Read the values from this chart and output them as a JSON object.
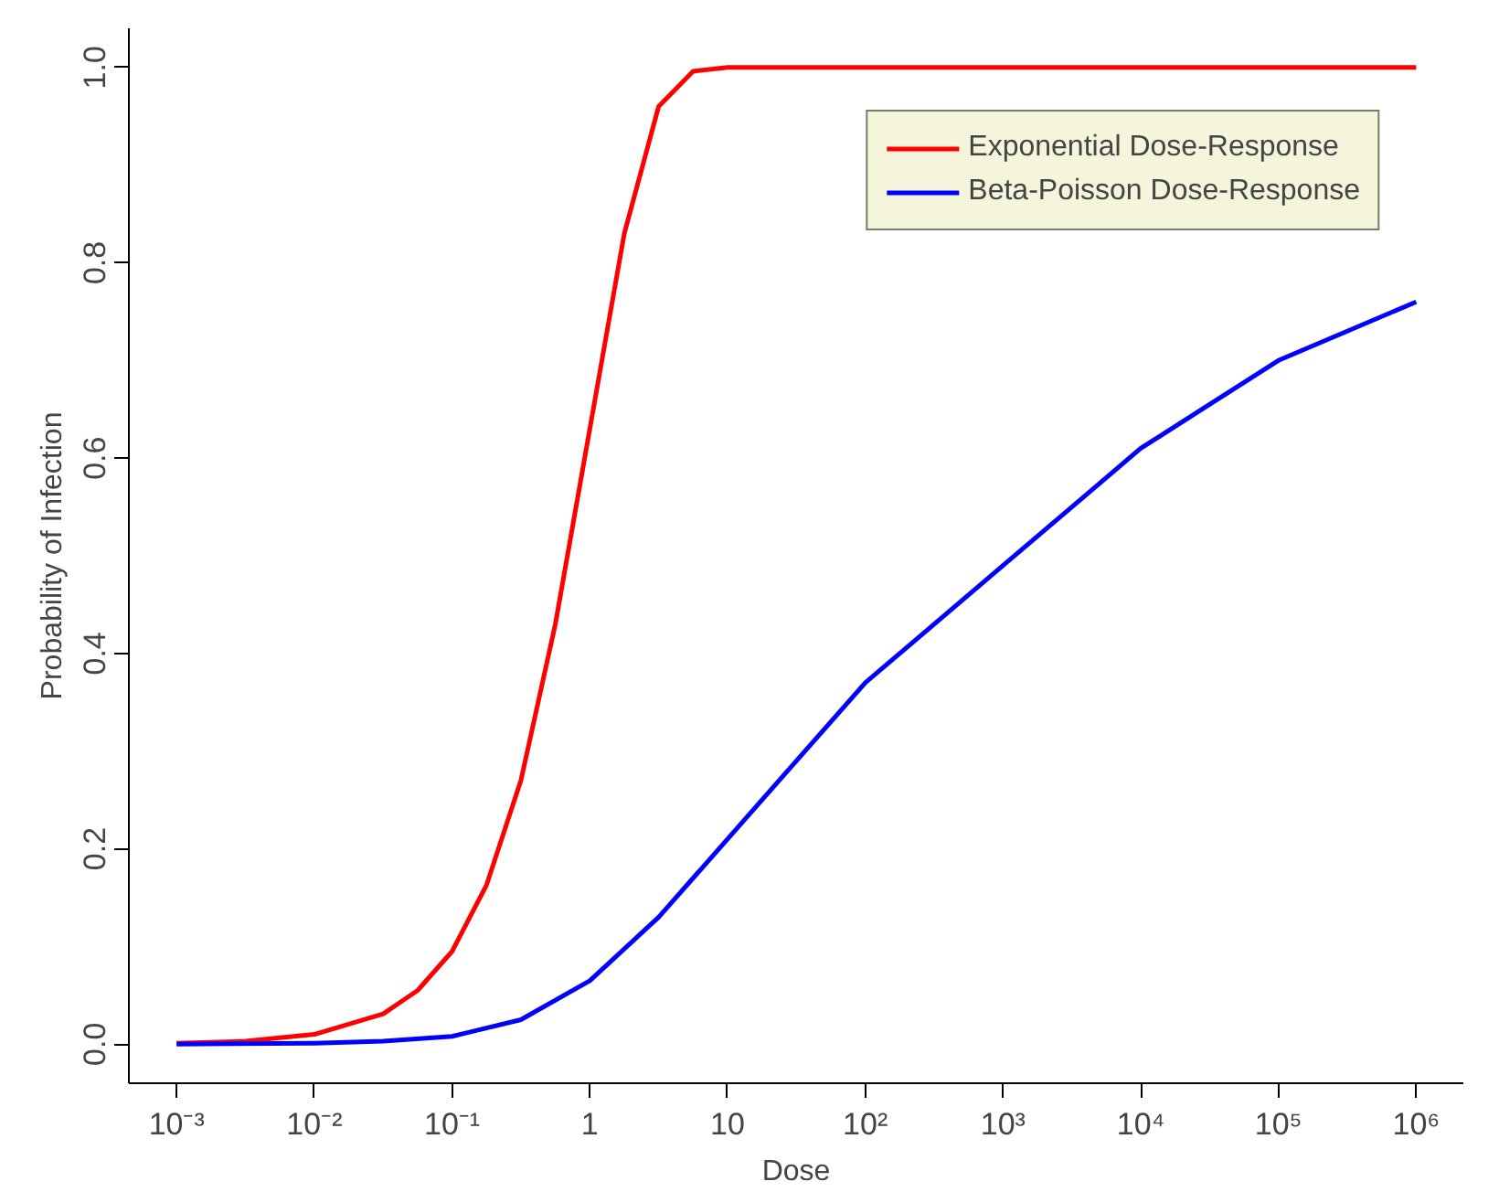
{
  "chart_data": {
    "type": "line",
    "xlabel": "Dose",
    "ylabel": "Probability of Infection",
    "log": "x",
    "xlim": [
      0.00045,
      2200000
    ],
    "ylim": [
      -0.04,
      1.04
    ],
    "xticks": [
      {
        "value": 0.001,
        "label": "10⁻³"
      },
      {
        "value": 0.01,
        "label": "10⁻²"
      },
      {
        "value": 0.1,
        "label": "10⁻¹"
      },
      1,
      10,
      {
        "value": 100,
        "label": "10²"
      },
      {
        "value": 1000,
        "label": "10³"
      },
      {
        "value": 10000,
        "label": "10⁴"
      },
      {
        "value": 100000,
        "label": "10⁵"
      },
      {
        "value": 1000000,
        "label": "10⁶"
      }
    ],
    "yticks": [
      {
        "value": 0,
        "label": "0.0"
      },
      0.2,
      0.4,
      0.6,
      0.8,
      {
        "value": 1,
        "label": "1.0"
      }
    ],
    "grid": false,
    "legend": "top right",
    "line_style": "solid",
    "marker": "none",
    "series": [
      {
        "name": "Exponential Dose-Response",
        "color": "#ff0000",
        "x": [
          0.001,
          0.00316,
          0.01,
          0.0316,
          0.0562,
          0.1,
          0.178,
          0.316,
          0.562,
          1,
          1.78,
          3.16,
          5.62,
          10,
          31.6,
          100,
          1000,
          10000,
          100000,
          1000000
        ],
        "values": [
          0.001,
          0.003,
          0.01,
          0.031,
          0.055,
          0.095,
          0.163,
          0.27,
          0.43,
          0.63,
          0.83,
          0.96,
          0.996,
          1.0,
          1.0,
          1.0,
          1.0,
          1.0,
          1.0,
          1.0
        ]
      },
      {
        "name": "Beta-Poisson Dose-Response",
        "color": "#0000ff",
        "x": [
          0.001,
          0.01,
          0.0316,
          0.1,
          0.316,
          1,
          3.16,
          10,
          31.6,
          100,
          316,
          1000,
          3162,
          10000,
          31623,
          100000,
          316228,
          1000000
        ],
        "values": [
          0.0,
          0.001,
          0.003,
          0.008,
          0.025,
          0.065,
          0.13,
          0.21,
          0.29,
          0.37,
          0.43,
          0.49,
          0.55,
          0.61,
          0.655,
          0.7,
          0.73,
          0.76
        ]
      }
    ]
  }
}
